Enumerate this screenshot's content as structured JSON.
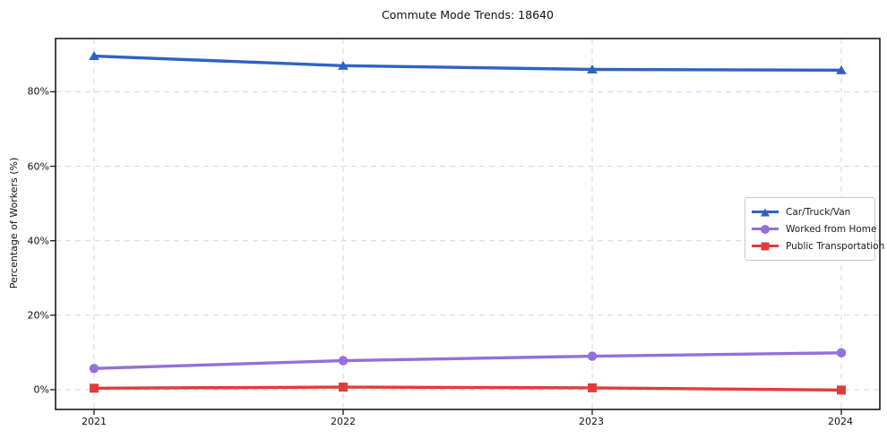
{
  "title": "Commute Mode Trends: 18640",
  "chart_data": {
    "type": "line",
    "title": "Commute Mode Trends: 18640",
    "xlabel": "",
    "ylabel": "Percentage of Workers (%)",
    "x": [
      2021,
      2022,
      2023,
      2024
    ],
    "x_tick_labels": [
      "2021",
      "2022",
      "2023",
      "2024"
    ],
    "y_ticks": [
      0,
      20,
      40,
      60,
      80
    ],
    "y_tick_labels": [
      "0%",
      "20%",
      "40%",
      "60%",
      "80%"
    ],
    "ylim": [
      -5.3,
      94.3
    ],
    "grid": true,
    "grid_style": "dashed",
    "grid_color": "#d7d7d7",
    "axis_color": "#1a1a1a",
    "legend_position": "center right",
    "series": [
      {
        "name": "Car/Truck/Van",
        "marker": "triangle",
        "color": "#2f62c5",
        "values": [
          89.6,
          87.0,
          86.0,
          85.8
        ]
      },
      {
        "name": "Worked from Home",
        "marker": "circle",
        "color": "#9370db",
        "values": [
          5.7,
          7.8,
          9.0,
          9.9
        ]
      },
      {
        "name": "Public Transportation",
        "marker": "square",
        "color": "#e03c3c",
        "values": [
          0.4,
          0.7,
          0.5,
          -0.1
        ]
      }
    ]
  }
}
